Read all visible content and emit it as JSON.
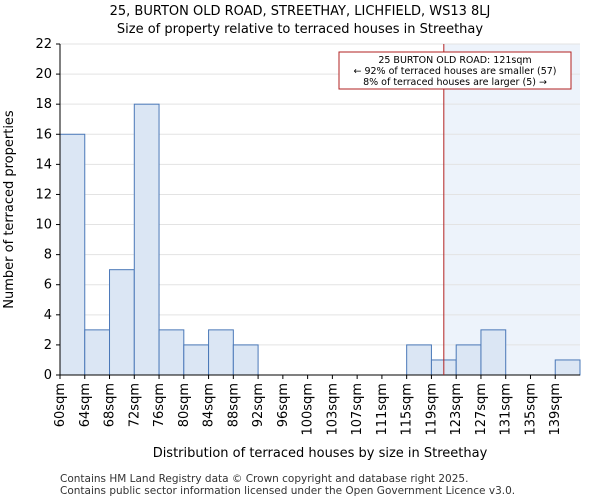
{
  "title_line1": "25, BURTON OLD ROAD, STREETHAY, LICHFIELD, WS13 8LJ",
  "title_line2": "Size of property relative to terraced houses in Streethay",
  "footer_line1": "Contains HM Land Registry data © Crown copyright and database right 2025.",
  "footer_line2": "Contains public sector information licensed under the Open Government Licence v3.0.",
  "colors": {
    "bar_fill": "#dbe6f4",
    "bar_stroke": "#4a78b8",
    "highlight_fill": "#edf3fb",
    "marker": "#b22222"
  },
  "chart_data": {
    "type": "bar",
    "title": "Size of property relative to terraced houses in Streethay",
    "xlabel": "Distribution of terraced houses by size in Streethay",
    "ylabel": "Number of terraced properties",
    "categories": [
      "60sqm",
      "64sqm",
      "68sqm",
      "72sqm",
      "76sqm",
      "80sqm",
      "84sqm",
      "88sqm",
      "92sqm",
      "96sqm",
      "100sqm",
      "103sqm",
      "107sqm",
      "111sqm",
      "115sqm",
      "119sqm",
      "123sqm",
      "127sqm",
      "131sqm",
      "135sqm",
      "139sqm"
    ],
    "values": [
      16,
      3,
      7,
      18,
      3,
      2,
      3,
      2,
      0,
      0,
      0,
      0,
      0,
      0,
      2,
      1,
      2,
      3,
      0,
      0,
      1
    ],
    "ylim": [
      0,
      22
    ],
    "yticks": [
      0,
      2,
      4,
      6,
      8,
      10,
      12,
      14,
      16,
      18,
      20,
      22
    ],
    "marker_value_sqm": 121,
    "annotation": {
      "line1": "25 BURTON OLD ROAD: 121sqm",
      "line2": "← 92% of terraced houses are smaller (57)",
      "line3": "8% of terraced houses are larger (5) →"
    }
  }
}
